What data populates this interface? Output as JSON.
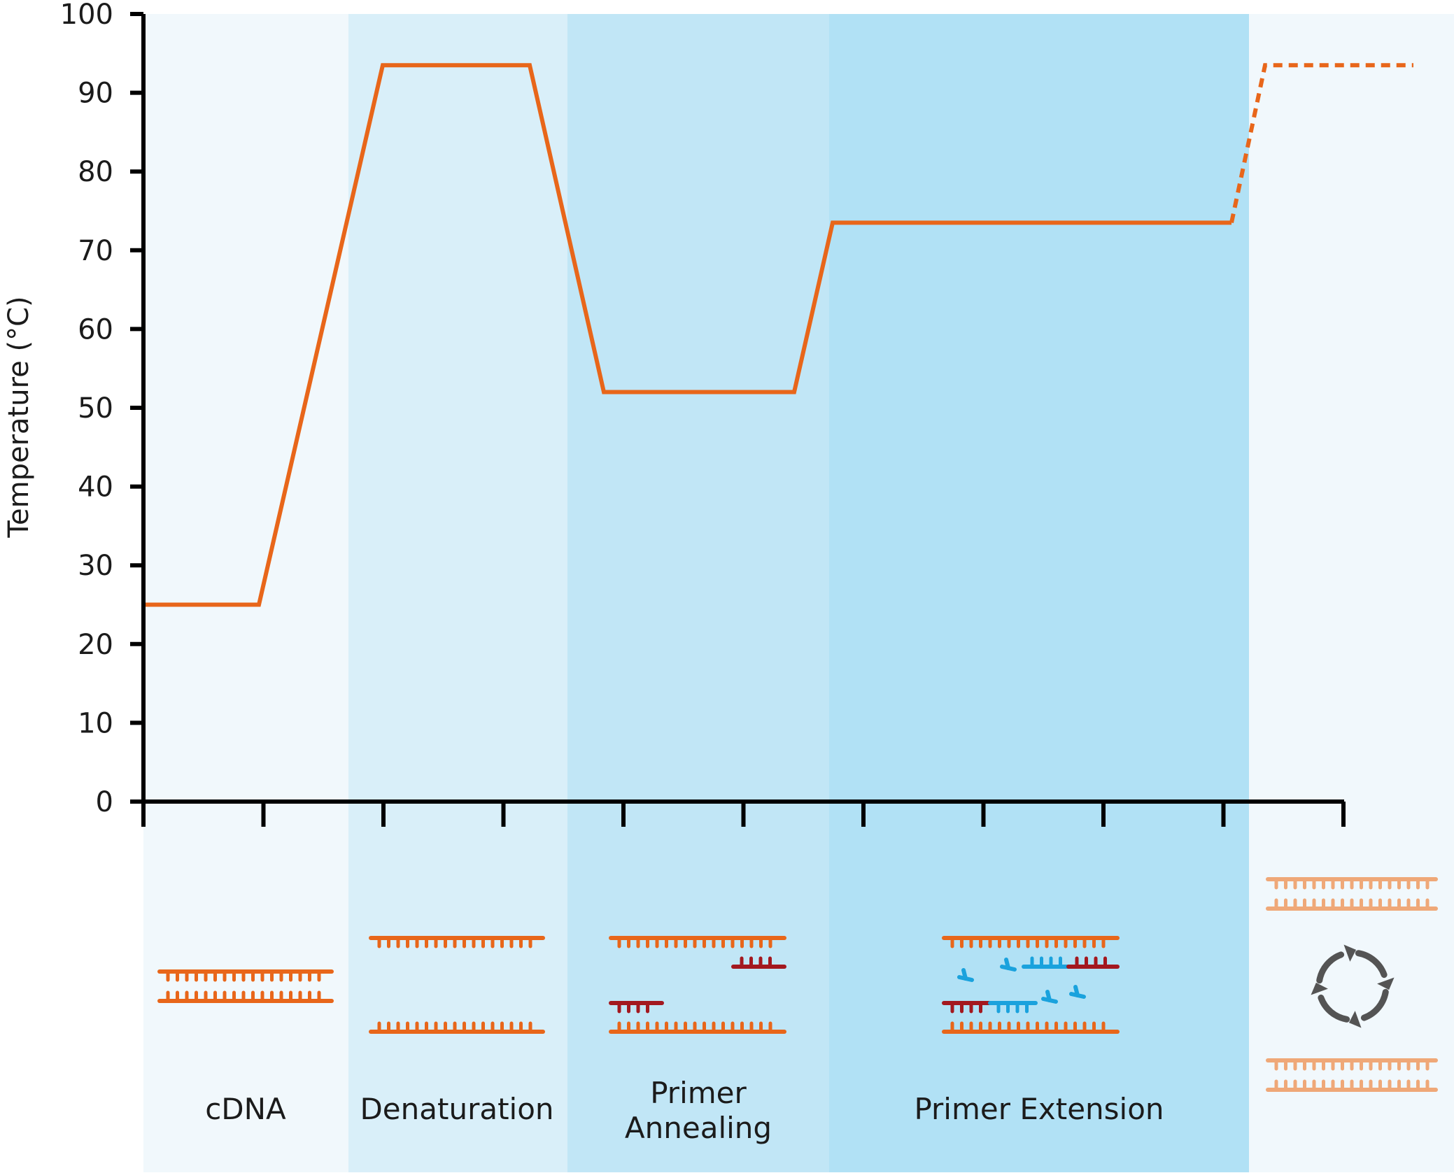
{
  "y_axis": {
    "label": "Temperature (°C)",
    "ticks": [
      "0",
      "10",
      "20",
      "30",
      "40",
      "50",
      "60",
      "70",
      "80",
      "90",
      "100"
    ]
  },
  "phases": [
    {
      "id": "cdna",
      "label_lines": [
        "cDNA"
      ],
      "color": "#f1f8fc"
    },
    {
      "id": "denaturation",
      "label_lines": [
        "Denaturation"
      ],
      "color": "#d9eff9"
    },
    {
      "id": "annealing",
      "label_lines": [
        "Primer",
        "Annealing"
      ],
      "color": "#c1e6f6"
    },
    {
      "id": "extension",
      "label_lines": [
        "Primer Extension"
      ],
      "color": "#b1e1f5"
    },
    {
      "id": "cycle",
      "label_lines": [],
      "color": "#f1f8fc"
    }
  ],
  "temperature_profile": {
    "solid_levels": [
      25,
      25,
      93.5,
      93.5,
      52,
      52,
      73.5,
      73.5
    ],
    "dashed_levels": [
      73.5,
      93.5,
      93.5
    ]
  },
  "colors": {
    "curve": "#e8661a",
    "strand": "#e8661a",
    "strand_light": "#efa878",
    "primer": "#a3181f",
    "nucleotide": "#1aa2dd",
    "cycle_arrows": "#545454",
    "axis": "#000000"
  },
  "icons": {
    "cycle": "cycle-arrows-icon"
  }
}
